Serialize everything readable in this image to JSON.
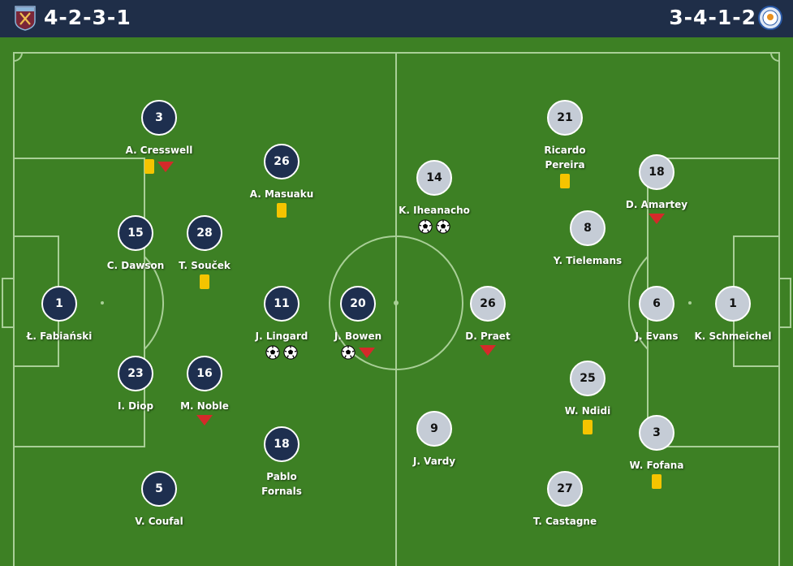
{
  "home": {
    "formation": "4-2-3-1",
    "crest": "west-ham-crest",
    "color": "#1e2f4f",
    "players": [
      {
        "number": "1",
        "name": "Ł. Fabiański",
        "events": []
      },
      {
        "number": "3",
        "name": "A. Cresswell",
        "events": [
          "yellow_card",
          "subbed_off"
        ]
      },
      {
        "number": "15",
        "name": "C. Dawson",
        "events": []
      },
      {
        "number": "23",
        "name": "I. Diop",
        "events": []
      },
      {
        "number": "5",
        "name": "V. Coufal",
        "events": []
      },
      {
        "number": "28",
        "name": "T. Souček",
        "events": [
          "yellow_card"
        ]
      },
      {
        "number": "16",
        "name": "M. Noble",
        "events": [
          "subbed_off"
        ]
      },
      {
        "number": "26",
        "name": "A. Masuaku",
        "events": [
          "yellow_card"
        ]
      },
      {
        "number": "11",
        "name": "J. Lingard",
        "events": [
          "goal",
          "goal"
        ]
      },
      {
        "number": "18",
        "name": "Pablo Fornals",
        "events": []
      },
      {
        "number": "20",
        "name": "J. Bowen",
        "events": [
          "goal",
          "subbed_off"
        ]
      }
    ]
  },
  "away": {
    "formation": "3-4-1-2",
    "crest": "leicester-city-crest",
    "color": "#c5ccd6",
    "players": [
      {
        "number": "1",
        "name": "K. Schmeichel",
        "events": []
      },
      {
        "number": "18",
        "name": "D. Amartey",
        "events": [
          "subbed_off"
        ]
      },
      {
        "number": "6",
        "name": "J. Evans",
        "events": []
      },
      {
        "number": "3",
        "name": "W. Fofana",
        "events": [
          "yellow_card"
        ]
      },
      {
        "number": "21",
        "name": "Ricardo Pereira",
        "events": [
          "yellow_card"
        ]
      },
      {
        "number": "8",
        "name": "Y. Tielemans",
        "events": []
      },
      {
        "number": "25",
        "name": "W. Ndidi",
        "events": [
          "yellow_card"
        ]
      },
      {
        "number": "27",
        "name": "T. Castagne",
        "events": []
      },
      {
        "number": "26",
        "name": "D. Praet",
        "events": [
          "subbed_off"
        ]
      },
      {
        "number": "14",
        "name": "K. Iheanacho",
        "events": [
          "goal",
          "goal"
        ]
      },
      {
        "number": "9",
        "name": "J. Vardy",
        "events": []
      }
    ]
  },
  "colors": {
    "header": "#1f2e48",
    "pitch": "#3d8024",
    "yellow_card": "#f5c400",
    "sub_off": "#d42a2a"
  }
}
